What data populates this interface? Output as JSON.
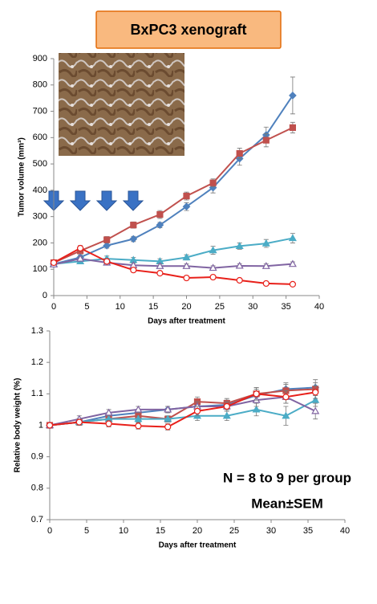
{
  "chart_data": [
    {
      "type": "line",
      "title": "BxPC3 xenograft",
      "x_label": "Days after treatment",
      "y_label": "Tumor volume (mm³)",
      "x": [
        0,
        4,
        8,
        12,
        16,
        20,
        24,
        28,
        32,
        36
      ],
      "xlim": [
        0,
        40
      ],
      "xticks": [
        0,
        5,
        10,
        15,
        20,
        25,
        30,
        35,
        40
      ],
      "ylim": [
        0,
        900
      ],
      "yticks": [
        0,
        100,
        200,
        300,
        400,
        500,
        600,
        700,
        800,
        900
      ],
      "series": [
        {
          "color": "#4f81bd",
          "marker": "diamond",
          "values": [
            120,
            145,
            190,
            215,
            268,
            338,
            410,
            520,
            610,
            760
          ],
          "errors": [
            5,
            10,
            10,
            10,
            10,
            15,
            20,
            25,
            30,
            70
          ]
        },
        {
          "color": "#c0504d",
          "marker": "square",
          "values": [
            125,
            170,
            212,
            268,
            308,
            378,
            428,
            540,
            590,
            638
          ],
          "errors": [
            5,
            10,
            12,
            12,
            15,
            15,
            15,
            20,
            25,
            20
          ]
        },
        {
          "color": "#4bacc6",
          "marker": "triangle",
          "values": [
            120,
            130,
            140,
            135,
            130,
            145,
            172,
            188,
            198,
            218
          ],
          "errors": [
            5,
            8,
            10,
            10,
            10,
            10,
            15,
            12,
            15,
            18
          ]
        },
        {
          "color": "#8064a2",
          "marker": "open-triangle",
          "values": [
            118,
            140,
            125,
            115,
            112,
            112,
            105,
            113,
            112,
            120
          ],
          "errors": [
            5,
            8,
            8,
            8,
            8,
            8,
            8,
            8,
            8,
            8
          ]
        },
        {
          "color": "#e8201a",
          "marker": "open-circle",
          "values": [
            125,
            180,
            130,
            97,
            85,
            67,
            70,
            58,
            46,
            43
          ],
          "errors": [
            5,
            10,
            10,
            6,
            5,
            5,
            5,
            4,
            4,
            4
          ]
        }
      ]
    },
    {
      "type": "line",
      "x_label": "Days after treatment",
      "y_label": "Relative body weight (%)",
      "annotations": [
        "N = 8 to 9 per group",
        "Mean±SEM"
      ],
      "x": [
        0,
        4,
        8,
        12,
        16,
        20,
        24,
        28,
        32,
        36
      ],
      "xlim": [
        0,
        40
      ],
      "xticks": [
        0,
        5,
        10,
        15,
        20,
        25,
        30,
        35,
        40
      ],
      "ylim": [
        0.7,
        1.3
      ],
      "yticks": [
        0.7,
        0.8,
        0.9,
        1,
        1.1,
        1.2,
        1.3
      ],
      "series": [
        {
          "color": "#4f81bd",
          "marker": "diamond",
          "values": [
            1.0,
            1.01,
            1.03,
            1.04,
            1.05,
            1.06,
            1.065,
            1.095,
            1.115,
            1.12
          ],
          "errors": [
            0.005,
            0.01,
            0.01,
            0.01,
            0.01,
            0.015,
            0.015,
            0.02,
            0.02,
            0.025
          ]
        },
        {
          "color": "#c0504d",
          "marker": "square",
          "values": [
            1.0,
            1.01,
            1.02,
            1.03,
            1.02,
            1.075,
            1.07,
            1.1,
            1.11,
            1.115
          ],
          "errors": [
            0.005,
            0.01,
            0.01,
            0.01,
            0.01,
            0.015,
            0.015,
            0.02,
            0.02,
            0.02
          ]
        },
        {
          "color": "#4bacc6",
          "marker": "triangle",
          "values": [
            1.0,
            1.01,
            1.02,
            1.02,
            1.02,
            1.03,
            1.03,
            1.05,
            1.03,
            1.08
          ],
          "errors": [
            0.005,
            0.01,
            0.01,
            0.01,
            0.01,
            0.015,
            0.015,
            0.02,
            0.03,
            0.02
          ]
        },
        {
          "color": "#8064a2",
          "marker": "open-triangle",
          "values": [
            1.0,
            1.02,
            1.04,
            1.05,
            1.05,
            1.06,
            1.06,
            1.08,
            1.09,
            1.045
          ],
          "errors": [
            0.005,
            0.01,
            0.01,
            0.01,
            0.01,
            0.015,
            0.015,
            0.02,
            0.02,
            0.025
          ]
        },
        {
          "color": "#e8201a",
          "marker": "open-circle",
          "values": [
            1.0,
            1.01,
            1.005,
            0.998,
            0.995,
            1.045,
            1.06,
            1.1,
            1.09,
            1.105
          ],
          "errors": [
            0.005,
            0.01,
            0.01,
            0.01,
            0.01,
            0.015,
            0.015,
            0.02,
            0.02,
            0.02
          ]
        }
      ]
    }
  ]
}
